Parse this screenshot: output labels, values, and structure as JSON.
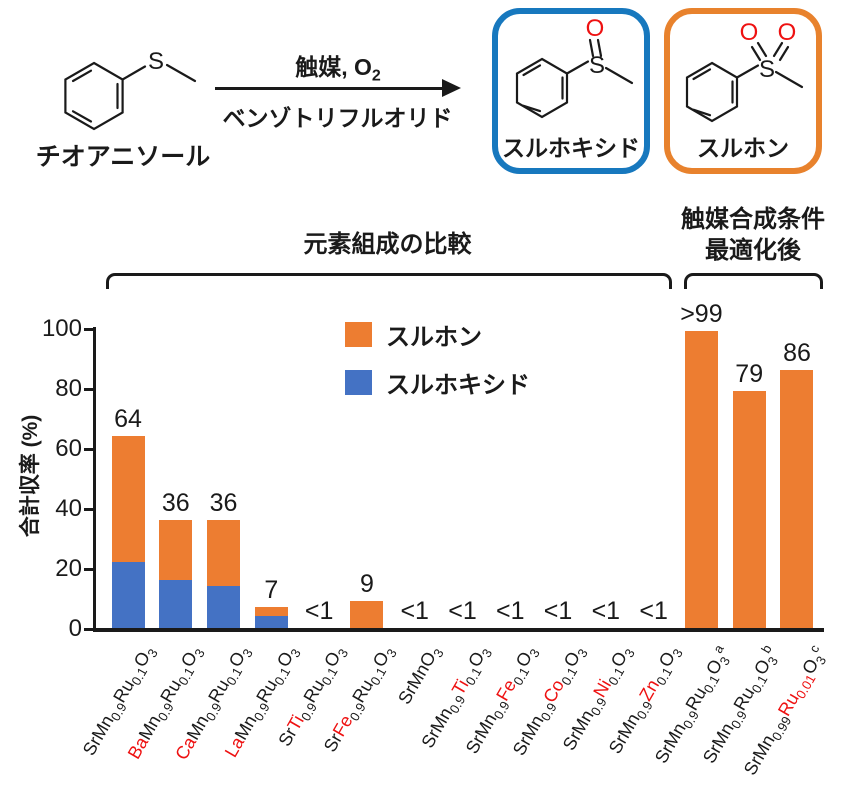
{
  "colors": {
    "orange": "#ED7D31",
    "blue": "#4472C4",
    "box-blue": "#1778BE",
    "box-orange": "#E8822D",
    "red": "#EE1111",
    "ink": "#1A1A1A"
  },
  "scheme": {
    "reactant_label": "チオアニソール",
    "conditions_top": "触媒, O",
    "conditions_top_sub": "2",
    "conditions_bottom": "ベンゾトリフルオリド",
    "product_sulfoxide_label": "スルホキシド",
    "product_sulfone_label": "スルホン",
    "atom_s": "S",
    "atom_o": "O"
  },
  "chart_data": {
    "type": "bar",
    "stacked": true,
    "title": "",
    "xlabel": "",
    "ylabel": "合計収率 (%)",
    "ylim": [
      0,
      100
    ],
    "yticks": [
      0,
      20,
      40,
      60,
      80,
      100
    ],
    "grid": false,
    "legend_position": "upper-left-inside",
    "legend": [
      {
        "label": "スルホン",
        "color": "#ED7D31"
      },
      {
        "label": "スルホキシド",
        "color": "#4472C4"
      }
    ],
    "annotations": {
      "group1": "元素組成の比較",
      "group1_bars": [
        1,
        12
      ],
      "group2_line1": "触媒合成条件",
      "group2_line2": "最適化後",
      "group2_bars": [
        13,
        15
      ]
    },
    "categories_text": [
      "SrMn0.9Ru0.1O3",
      "BaMn0.9Ru0.1O3",
      "CaMn0.9Ru0.1O3",
      "LaMn0.9Ru0.1O3",
      "SrTi0.9Ru0.1O3",
      "SrFe0.9Ru0.1O3",
      "SrMnO3",
      "SrMn0.9Ti0.1O3",
      "SrMn0.9Fe0.1O3",
      "SrMn0.9Co0.1O3",
      "SrMn0.9Ni0.1O3",
      "SrMn0.9Zn0.1O3",
      "SrMn0.9Ru0.1O3(a)",
      "SrMn0.9Ru0.1O3(b)",
      "SrMn0.99Ru0.01O3(c)"
    ],
    "categories": [
      {
        "segments": [
          [
            "Sr"
          ],
          [
            "Mn"
          ],
          [
            "0.9",
            "sub"
          ],
          [
            "Ru"
          ],
          [
            "0.1",
            "sub"
          ],
          [
            "O"
          ],
          [
            "3",
            "sub"
          ]
        ]
      },
      {
        "segments": [
          [
            "Ba",
            "red"
          ],
          [
            "Mn"
          ],
          [
            "0.9",
            "sub"
          ],
          [
            "Ru"
          ],
          [
            "0.1",
            "sub"
          ],
          [
            "O"
          ],
          [
            "3",
            "sub"
          ]
        ]
      },
      {
        "segments": [
          [
            "Ca",
            "red"
          ],
          [
            "Mn"
          ],
          [
            "0.9",
            "sub"
          ],
          [
            "Ru"
          ],
          [
            "0.1",
            "sub"
          ],
          [
            "O"
          ],
          [
            "3",
            "sub"
          ]
        ]
      },
      {
        "segments": [
          [
            "La",
            "red"
          ],
          [
            "Mn"
          ],
          [
            "0.9",
            "sub"
          ],
          [
            "Ru"
          ],
          [
            "0.1",
            "sub"
          ],
          [
            "O"
          ],
          [
            "3",
            "sub"
          ]
        ]
      },
      {
        "segments": [
          [
            "Sr"
          ],
          [
            "Ti",
            "red"
          ],
          [
            "0.9",
            "sub"
          ],
          [
            "Ru"
          ],
          [
            "0.1",
            "sub"
          ],
          [
            "O"
          ],
          [
            "3",
            "sub"
          ]
        ]
      },
      {
        "segments": [
          [
            "Sr"
          ],
          [
            "Fe",
            "red"
          ],
          [
            "0.9",
            "sub"
          ],
          [
            "Ru"
          ],
          [
            "0.1",
            "sub"
          ],
          [
            "O"
          ],
          [
            "3",
            "sub"
          ]
        ]
      },
      {
        "segments": [
          [
            "Sr"
          ],
          [
            "Mn"
          ],
          [
            "O"
          ],
          [
            "3",
            "sub"
          ]
        ]
      },
      {
        "segments": [
          [
            "Sr"
          ],
          [
            "Mn"
          ],
          [
            "0.9",
            "sub"
          ],
          [
            "Ti",
            "red"
          ],
          [
            "0.1",
            "sub"
          ],
          [
            "O"
          ],
          [
            "3",
            "sub"
          ]
        ]
      },
      {
        "segments": [
          [
            "Sr"
          ],
          [
            "Mn"
          ],
          [
            "0.9",
            "sub"
          ],
          [
            "Fe",
            "red"
          ],
          [
            "0.1",
            "sub"
          ],
          [
            "O"
          ],
          [
            "3",
            "sub"
          ]
        ]
      },
      {
        "segments": [
          [
            "Sr"
          ],
          [
            "Mn"
          ],
          [
            "0.9",
            "sub"
          ],
          [
            "Co",
            "red"
          ],
          [
            "0.1",
            "sub"
          ],
          [
            "O"
          ],
          [
            "3",
            "sub"
          ]
        ]
      },
      {
        "segments": [
          [
            "Sr"
          ],
          [
            "Mn"
          ],
          [
            "0.9",
            "sub"
          ],
          [
            "Ni",
            "red"
          ],
          [
            "0.1",
            "sub"
          ],
          [
            "O"
          ],
          [
            "3",
            "sub"
          ]
        ]
      },
      {
        "segments": [
          [
            "Sr"
          ],
          [
            "Mn"
          ],
          [
            "0.9",
            "sub"
          ],
          [
            "Zn",
            "red"
          ],
          [
            "0.1",
            "sub"
          ],
          [
            "O"
          ],
          [
            "3",
            "sub"
          ]
        ]
      },
      {
        "segments": [
          [
            "Sr"
          ],
          [
            "Mn"
          ],
          [
            "0.9",
            "sub"
          ],
          [
            "Ru"
          ],
          [
            "0.1",
            "sub"
          ],
          [
            "O"
          ],
          [
            "3",
            "sub"
          ],
          [
            "a",
            "sup"
          ]
        ]
      },
      {
        "segments": [
          [
            "Sr"
          ],
          [
            "Mn"
          ],
          [
            "0.9",
            "sub"
          ],
          [
            "Ru"
          ],
          [
            "0.1",
            "sub"
          ],
          [
            "O"
          ],
          [
            "3",
            "sub"
          ],
          [
            "b",
            "sup"
          ]
        ]
      },
      {
        "segments": [
          [
            "Sr"
          ],
          [
            "Mn"
          ],
          [
            "0.99",
            "sub"
          ],
          [
            "Ru",
            "red"
          ],
          [
            "0.01",
            "sub red"
          ],
          [
            "O"
          ],
          [
            "3",
            "sub"
          ],
          [
            "c",
            "sup"
          ]
        ]
      }
    ],
    "series": [
      {
        "name": "スルホキシド",
        "color": "#4472C4",
        "values": [
          22,
          16,
          14,
          4,
          0,
          0,
          0,
          0,
          0,
          0,
          0,
          0,
          0,
          0,
          0
        ]
      },
      {
        "name": "スルホン",
        "color": "#ED7D31",
        "values": [
          42,
          20,
          22,
          3,
          0,
          9,
          0,
          0,
          0,
          0,
          0,
          0,
          99,
          79,
          86
        ]
      }
    ],
    "totals_labels": [
      "64",
      "36",
      "36",
      "7",
      "<1",
      "9",
      "<1",
      "<1",
      "<1",
      "<1",
      "<1",
      "<1",
      ">99",
      "79",
      "86"
    ]
  }
}
